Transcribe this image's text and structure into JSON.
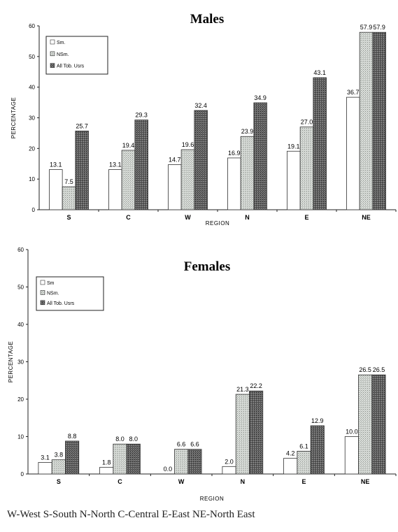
{
  "chart_data": [
    {
      "type": "bar",
      "title": "Males",
      "xlabel": "REGION",
      "ylabel": "PERCENTAGE",
      "ylim": [
        0,
        60
      ],
      "yticks": [
        "0",
        "10",
        "20",
        "30",
        "40",
        "50",
        "60"
      ],
      "categories": [
        "S",
        "C",
        "W",
        "N",
        "E",
        "NE"
      ],
      "legend_position": "top-left",
      "series": [
        {
          "name": "Sm.",
          "values": [
            13.1,
            13.1,
            14.7,
            16.9,
            19.1,
            36.7
          ],
          "labels": [
            "13.1",
            "13.1",
            "14.7",
            "16.9",
            "19.1",
            "36.7"
          ]
        },
        {
          "name": "NSm.",
          "values": [
            7.5,
            19.4,
            19.6,
            23.9,
            27.0,
            57.9
          ],
          "labels": [
            "7.5",
            "19.4",
            "19.6",
            "23.9",
            "27.0",
            "57.9"
          ]
        },
        {
          "name": "All Tob. Usrs",
          "values": [
            25.7,
            29.3,
            32.4,
            34.9,
            43.1,
            57.9
          ],
          "labels": [
            "25.7",
            "29.3",
            "32.4",
            "34.9",
            "43.1",
            "57.9"
          ]
        }
      ]
    },
    {
      "type": "bar",
      "title": "Females",
      "xlabel": "REGION",
      "ylabel": "PERCENTAGE",
      "ylim": [
        0,
        60
      ],
      "yticks": [
        "0",
        "10",
        "20",
        "30",
        "40",
        "50",
        "60"
      ],
      "categories": [
        "S",
        "C",
        "W",
        "N",
        "E",
        "NE"
      ],
      "legend_position": "top-left",
      "series": [
        {
          "name": "Sm",
          "values": [
            3.1,
            1.8,
            0.0,
            2.0,
            4.2,
            10.0
          ],
          "labels": [
            "3.1",
            "1.8",
            "0.0",
            "2.0",
            "4.2",
            "10.0"
          ]
        },
        {
          "name": "NSm.",
          "values": [
            3.8,
            8.0,
            6.6,
            21.3,
            6.1,
            26.5
          ],
          "labels": [
            "3.8",
            "8.0",
            "6.6",
            "21.3",
            "6.1",
            "26.5"
          ]
        },
        {
          "name": "All Tob. Usrs",
          "values": [
            8.8,
            8.0,
            6.6,
            22.2,
            12.9,
            26.5
          ],
          "labels": [
            "8.8",
            "8.0",
            "6.6",
            "22.2",
            "12.9",
            "26.5"
          ]
        }
      ]
    }
  ],
  "footer_text": "W-West  S-South  N-North  C-Central  E-East  NE-North East",
  "colors": {
    "sm": "#ffffff",
    "nsm": "#c8ccc8",
    "all": "#555555",
    "axis": "#222222"
  }
}
